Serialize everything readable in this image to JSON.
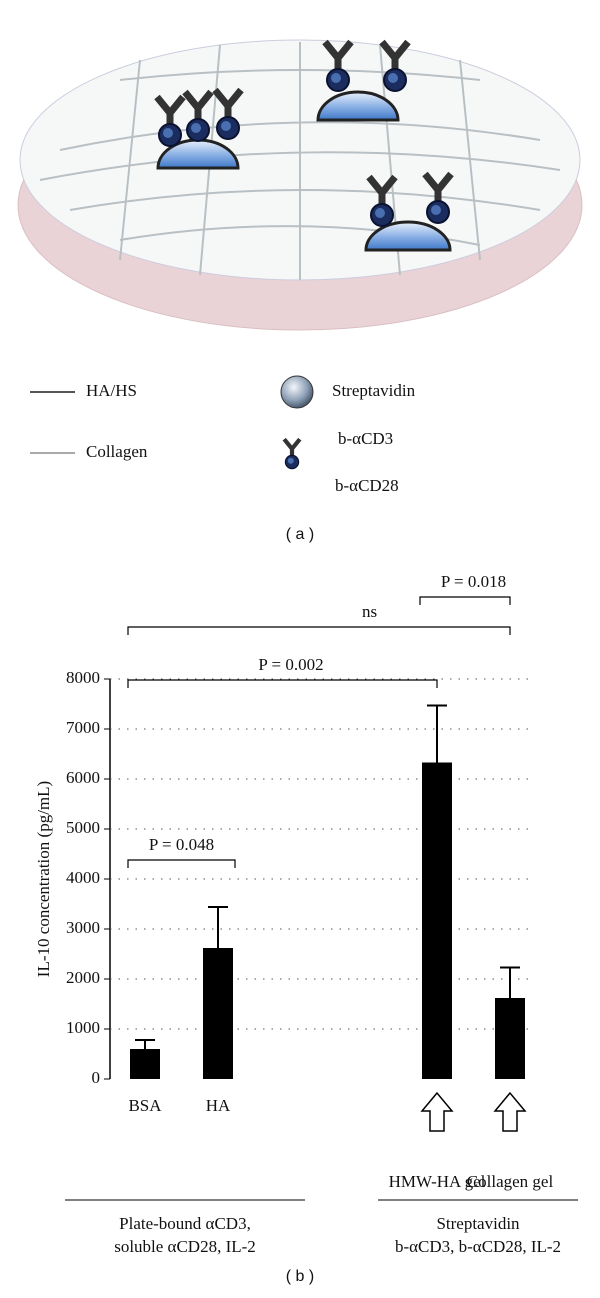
{
  "panel_a": {
    "label": "( a )",
    "legend": {
      "lines": [
        "HA/HS",
        "Collagen"
      ],
      "sphere": "Streptavidin",
      "antibodies": [
        "b-αCD3",
        "b-αCD28"
      ]
    }
  },
  "chart_data": {
    "type": "bar",
    "label": "( b )",
    "y_label": "IL-10 concentration (pg/mL)",
    "categories": [
      "BSA",
      "HA",
      null,
      null,
      "HMW-HA gel",
      "Collagen gel"
    ],
    "values": [
      600,
      2620,
      null,
      null,
      6330,
      1620
    ],
    "errors": [
      180,
      820,
      null,
      null,
      1140,
      610
    ],
    "color": "#000000",
    "ylim": [
      0,
      8000
    ],
    "yticks": [
      0,
      1000,
      2000,
      3000,
      4000,
      5000,
      6000,
      7000,
      8000
    ],
    "grid": true,
    "annotations": [
      "P = 0.048",
      "P = 0.002",
      "ns",
      "P = 0.018"
    ],
    "groups": [
      [
        "Plate-bound αCD3,",
        "soluble αCD28, IL-2"
      ],
      [
        "Streptavidin",
        "b-αCD3, b-αCD28, IL-2"
      ]
    ]
  }
}
